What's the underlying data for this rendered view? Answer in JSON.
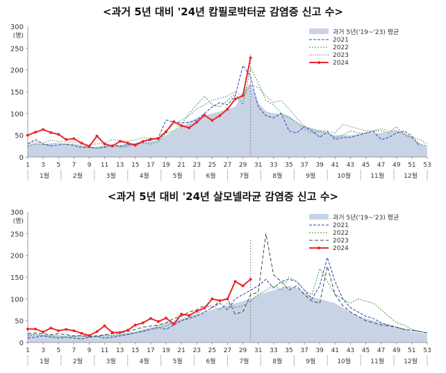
{
  "charts": [
    {
      "title": "<과거 5년 대비 '24년 캄필로박터균 감염증 신고 수>"
    },
    {
      "title": "<과거 5년 대비 '24년 살모넬라균 감염증 신고 수>"
    }
  ],
  "chart_data": [
    {
      "type": "line",
      "title": "<과거 5년 대비 '24년 캄필로박터균 감염증 신고 수>",
      "ylabel_top": "300",
      "ylabel_unit": "(명)",
      "ylim": [
        0,
        300
      ],
      "yticks": [
        0,
        50,
        100,
        150,
        200,
        250
      ],
      "xlim": [
        1,
        53
      ],
      "xticks": [
        1,
        3,
        5,
        7,
        9,
        11,
        13,
        15,
        17,
        19,
        21,
        23,
        25,
        27,
        29,
        31,
        33,
        35,
        37,
        39,
        41,
        43,
        45,
        47,
        49,
        51,
        53
      ],
      "month_labels": [
        "1월",
        "2월",
        "3월",
        "4월",
        "5월",
        "6월",
        "7월",
        "8월",
        "9월",
        "10월",
        "11월",
        "12월"
      ],
      "grid": false,
      "legend_position": "top-right",
      "series": [
        {
          "name": "과거 5년('19~'23) 평균",
          "kind": "area",
          "color": "#c8d4e6",
          "x": [
            1,
            2,
            3,
            4,
            5,
            6,
            7,
            8,
            9,
            10,
            11,
            12,
            13,
            14,
            15,
            16,
            17,
            18,
            19,
            20,
            21,
            22,
            23,
            24,
            25,
            26,
            27,
            28,
            29,
            30,
            31,
            32,
            33,
            34,
            35,
            36,
            37,
            38,
            39,
            40,
            41,
            42,
            43,
            44,
            45,
            46,
            47,
            48,
            49,
            50,
            51,
            52,
            53
          ],
          "values": [
            28,
            32,
            30,
            30,
            29,
            30,
            28,
            26,
            24,
            24,
            26,
            28,
            28,
            30,
            32,
            34,
            36,
            40,
            50,
            60,
            70,
            80,
            90,
            95,
            100,
            105,
            110,
            115,
            150,
            170,
            125,
            105,
            100,
            100,
            95,
            80,
            70,
            65,
            60,
            55,
            50,
            50,
            50,
            52,
            55,
            55,
            55,
            58,
            60,
            55,
            45,
            30,
            25
          ]
        },
        {
          "name": "2021",
          "kind": "line",
          "color": "#2f3fb5",
          "dash": "4,2",
          "x": [
            1,
            2,
            3,
            4,
            5,
            6,
            7,
            8,
            9,
            10,
            11,
            12,
            13,
            14,
            15,
            16,
            17,
            18,
            19,
            20,
            21,
            22,
            23,
            24,
            25,
            26,
            27,
            28,
            29,
            30,
            31,
            32,
            33,
            34,
            35,
            36,
            37,
            38,
            39,
            40,
            41,
            42,
            43,
            44,
            45,
            46,
            47,
            48,
            49,
            50,
            51,
            52
          ],
          "values": [
            30,
            40,
            30,
            25,
            28,
            30,
            26,
            22,
            22,
            20,
            22,
            28,
            25,
            28,
            30,
            36,
            38,
            45,
            85,
            80,
            78,
            80,
            85,
            100,
            115,
            125,
            120,
            140,
            210,
            185,
            115,
            95,
            90,
            100,
            60,
            55,
            70,
            60,
            45,
            58,
            40,
            45,
            45,
            50,
            55,
            58,
            40,
            45,
            55,
            60,
            48,
            25
          ]
        },
        {
          "name": "2022",
          "kind": "line",
          "color": "#2e9a3e",
          "dash": "2,2",
          "x": [
            1,
            2,
            3,
            4,
            5,
            6,
            7,
            8,
            9,
            10,
            11,
            12,
            13,
            14,
            15,
            16,
            17,
            18,
            19,
            20,
            21,
            22,
            23,
            24,
            25,
            26,
            27,
            28,
            29,
            30,
            31,
            32,
            33,
            34,
            35,
            36,
            37,
            38,
            39,
            40,
            41,
            42,
            43,
            44,
            45,
            46,
            47,
            48,
            49,
            50,
            51,
            52,
            53
          ],
          "values": [
            25,
            30,
            28,
            30,
            32,
            28,
            30,
            25,
            22,
            20,
            24,
            26,
            22,
            24,
            30,
            32,
            30,
            35,
            55,
            60,
            75,
            100,
            120,
            140,
            120,
            115,
            130,
            145,
            120,
            205,
            170,
            130,
            120,
            100,
            90,
            80,
            65,
            55,
            60,
            55,
            45,
            50,
            60,
            55,
            55,
            60,
            60,
            55,
            70,
            50,
            45,
            30,
            25
          ]
        },
        {
          "name": "2023",
          "kind": "line",
          "color": "#404040",
          "dash": "1,2",
          "x": [
            1,
            2,
            3,
            4,
            5,
            6,
            7,
            8,
            9,
            10,
            11,
            12,
            13,
            14,
            15,
            16,
            17,
            18,
            19,
            20,
            21,
            22,
            23,
            24,
            25,
            26,
            27,
            28,
            29,
            30,
            31,
            32,
            33,
            34,
            35,
            36,
            37,
            38,
            39,
            40,
            41,
            42,
            43,
            44,
            45,
            46,
            47,
            48,
            49,
            50,
            51,
            52,
            53
          ],
          "values": [
            30,
            35,
            32,
            38,
            36,
            34,
            35,
            30,
            28,
            30,
            32,
            40,
            38,
            36,
            40,
            45,
            42,
            45,
            60,
            75,
            85,
            95,
            110,
            120,
            130,
            135,
            140,
            150,
            140,
            165,
            160,
            140,
            125,
            130,
            110,
            90,
            70,
            65,
            60,
            60,
            55,
            75,
            70,
            65,
            60,
            60,
            65,
            60,
            60,
            55,
            45,
            40,
            30
          ]
        },
        {
          "name": "2024",
          "kind": "line",
          "color": "#e8262b",
          "marker": true,
          "x": [
            1,
            2,
            3,
            4,
            5,
            6,
            7,
            8,
            9,
            10,
            11,
            12,
            13,
            14,
            15,
            16,
            17,
            18,
            19,
            20,
            21,
            22,
            23,
            24,
            25,
            26,
            27,
            28,
            29,
            30
          ],
          "values": [
            50,
            57,
            63,
            56,
            52,
            40,
            42,
            32,
            24,
            48,
            30,
            25,
            36,
            32,
            27,
            36,
            41,
            42,
            58,
            81,
            72,
            67,
            80,
            96,
            84,
            95,
            110,
            133,
            141,
            228
          ]
        }
      ],
      "vline_x": 30
    },
    {
      "type": "line",
      "title": "<과거 5년 대비 '24년 살모넬라균 감염증 신고 수>",
      "ylabel_top": "300",
      "ylabel_unit": "(명)",
      "ylim": [
        0,
        300
      ],
      "yticks": [
        0,
        50,
        100,
        150,
        200,
        250
      ],
      "xlim": [
        1,
        53
      ],
      "xticks": [
        1,
        3,
        5,
        7,
        9,
        11,
        13,
        15,
        17,
        19,
        21,
        23,
        25,
        27,
        29,
        31,
        33,
        35,
        37,
        39,
        41,
        43,
        45,
        47,
        49,
        51,
        53
      ],
      "month_labels": [
        "1월",
        "2월",
        "3월",
        "4월",
        "5월",
        "6월",
        "7월",
        "8월",
        "9월",
        "10월",
        "11월",
        "12월"
      ],
      "grid": false,
      "legend_position": "top-right",
      "series": [
        {
          "name": "과거 5년('19~'23) 평균",
          "kind": "area",
          "color": "#c8d4e6",
          "x": [
            1,
            2,
            3,
            4,
            5,
            6,
            7,
            8,
            9,
            10,
            11,
            12,
            13,
            14,
            15,
            16,
            17,
            18,
            19,
            20,
            21,
            22,
            23,
            24,
            25,
            26,
            27,
            28,
            29,
            30,
            31,
            32,
            33,
            34,
            35,
            36,
            37,
            38,
            39,
            40,
            41,
            42,
            43,
            44,
            45,
            46,
            47,
            48,
            49,
            50,
            51,
            52,
            53
          ],
          "values": [
            20,
            20,
            18,
            18,
            17,
            16,
            16,
            16,
            16,
            16,
            18,
            18,
            20,
            22,
            25,
            30,
            35,
            40,
            45,
            50,
            55,
            60,
            65,
            70,
            75,
            80,
            85,
            90,
            95,
            100,
            110,
            115,
            120,
            125,
            130,
            125,
            115,
            105,
            100,
            95,
            90,
            80,
            70,
            60,
            55,
            50,
            45,
            40,
            35,
            30,
            25,
            22,
            20
          ]
        },
        {
          "name": "2021",
          "kind": "line",
          "color": "#2f3fb5",
          "dash": "4,2",
          "x": [
            1,
            2,
            3,
            4,
            5,
            6,
            7,
            8,
            9,
            10,
            11,
            12,
            13,
            14,
            15,
            16,
            17,
            18,
            19,
            20,
            21,
            22,
            23,
            24,
            25,
            26,
            27,
            28,
            29,
            30,
            31,
            32,
            33,
            34,
            35,
            36,
            37,
            38,
            39,
            40,
            41,
            42,
            43,
            44,
            45,
            46,
            47,
            48,
            49,
            50,
            51,
            52,
            53
          ],
          "values": [
            10,
            12,
            15,
            12,
            10,
            12,
            10,
            8,
            12,
            14,
            10,
            12,
            15,
            18,
            22,
            25,
            30,
            35,
            30,
            40,
            50,
            55,
            60,
            70,
            80,
            90,
            75,
            100,
            110,
            120,
            130,
            145,
            125,
            140,
            145,
            140,
            120,
            100,
            130,
            195,
            140,
            100,
            80,
            70,
            60,
            55,
            45,
            40,
            35,
            30,
            28,
            25,
            22
          ]
        },
        {
          "name": "2022",
          "kind": "line",
          "color": "#2e9a3e",
          "dash": "2,2",
          "x": [
            1,
            2,
            3,
            4,
            5,
            6,
            7,
            8,
            9,
            10,
            11,
            12,
            13,
            14,
            15,
            16,
            17,
            18,
            19,
            20,
            21,
            22,
            23,
            24,
            25,
            26,
            27,
            28,
            29,
            30,
            31,
            32,
            33,
            34,
            35,
            36,
            37,
            38,
            39,
            40,
            41,
            42,
            43,
            44,
            45,
            46,
            47,
            48,
            49,
            50,
            51,
            52,
            53
          ],
          "values": [
            15,
            18,
            16,
            15,
            14,
            12,
            14,
            15,
            12,
            14,
            16,
            15,
            18,
            20,
            22,
            28,
            30,
            32,
            38,
            45,
            50,
            58,
            65,
            80,
            85,
            75,
            90,
            80,
            85,
            95,
            110,
            120,
            130,
            120,
            150,
            140,
            120,
            110,
            170,
            140,
            110,
            100,
            90,
            100,
            95,
            90,
            75,
            60,
            45,
            40,
            30,
            25,
            22
          ]
        },
        {
          "name": "2023",
          "kind": "line",
          "color": "#404040",
          "dash": "5,3",
          "x": [
            1,
            2,
            3,
            4,
            5,
            6,
            7,
            8,
            9,
            10,
            11,
            12,
            13,
            14,
            15,
            16,
            17,
            18,
            19,
            20,
            21,
            22,
            23,
            24,
            25,
            26,
            27,
            28,
            29,
            30,
            31,
            32,
            33,
            34,
            35,
            36,
            37,
            38,
            39,
            40,
            41,
            42,
            43,
            44,
            45,
            46,
            47,
            48,
            49,
            50,
            51,
            52,
            53
          ],
          "values": [
            20,
            22,
            20,
            18,
            20,
            18,
            15,
            16,
            14,
            15,
            18,
            20,
            22,
            25,
            30,
            35,
            38,
            40,
            45,
            55,
            60,
            70,
            75,
            85,
            80,
            95,
            100,
            65,
            70,
            110,
            115,
            250,
            155,
            140,
            120,
            130,
            110,
            95,
            90,
            175,
            110,
            85,
            70,
            60,
            50,
            45,
            40,
            38,
            35,
            30,
            28,
            25,
            22
          ]
        },
        {
          "name": "2024",
          "kind": "line",
          "color": "#e8262b",
          "marker": true,
          "x": [
            1,
            2,
            3,
            4,
            5,
            6,
            7,
            8,
            9,
            10,
            11,
            12,
            13,
            14,
            15,
            16,
            17,
            18,
            19,
            20,
            21,
            22,
            23,
            24,
            25,
            26,
            27,
            28,
            29,
            30
          ],
          "values": [
            31,
            31,
            24,
            33,
            27,
            30,
            27,
            21,
            16,
            25,
            38,
            23,
            23,
            28,
            40,
            45,
            55,
            48,
            56,
            42,
            65,
            62,
            72,
            79,
            100,
            96,
            100,
            140,
            130,
            145
          ]
        }
      ],
      "vline_x": 30
    }
  ]
}
